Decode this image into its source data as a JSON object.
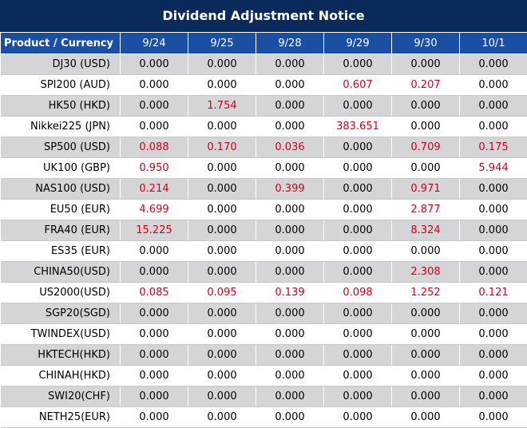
{
  "title": "Dividend Adjustment Notice",
  "header": {
    "product_label": "Product / Currency",
    "dates": [
      "9/24",
      "9/25",
      "9/28",
      "9/29",
      "9/30",
      "10/1"
    ]
  },
  "colors": {
    "title_bg": "#0b2a5c",
    "header_bg": "#1a4fa3",
    "highlight_text": "#d0021b",
    "shade_bg": "#d5d5d7"
  },
  "rows": [
    {
      "product": "DJ30 (USD)",
      "values": [
        "0.000",
        "0.000",
        "0.000",
        "0.000",
        "0.000",
        "0.000"
      ]
    },
    {
      "product": "SPI200 (AUD)",
      "values": [
        "0.000",
        "0.000",
        "0.000",
        "0.607",
        "0.207",
        "0.000"
      ]
    },
    {
      "product": "HK50 (HKD)",
      "values": [
        "0.000",
        "1.754",
        "0.000",
        "0.000",
        "0.000",
        "0.000"
      ]
    },
    {
      "product": "Nikkei225 (JPN)",
      "values": [
        "0.000",
        "0.000",
        "0.000",
        "383.651",
        "0.000",
        "0.000"
      ]
    },
    {
      "product": "SP500 (USD)",
      "values": [
        "0.088",
        "0.170",
        "0.036",
        "0.000",
        "0.709",
        "0.175"
      ]
    },
    {
      "product": "UK100 (GBP)",
      "values": [
        "0.950",
        "0.000",
        "0.000",
        "0.000",
        "0.000",
        "5.944"
      ]
    },
    {
      "product": "NAS100 (USD)",
      "values": [
        "0.214",
        "0.000",
        "0.399",
        "0.000",
        "0.971",
        "0.000"
      ]
    },
    {
      "product": "EU50 (EUR)",
      "values": [
        "4.699",
        "0.000",
        "0.000",
        "0.000",
        "2.877",
        "0.000"
      ]
    },
    {
      "product": "FRA40 (EUR)",
      "values": [
        "15.225",
        "0.000",
        "0.000",
        "0.000",
        "8.324",
        "0.000"
      ]
    },
    {
      "product": "ES35 (EUR)",
      "values": [
        "0.000",
        "0.000",
        "0.000",
        "0.000",
        "0.000",
        "0.000"
      ]
    },
    {
      "product": "CHINA50(USD)",
      "values": [
        "0.000",
        "0.000",
        "0.000",
        "0.000",
        "2.308",
        "0.000"
      ]
    },
    {
      "product": "US2000(USD)",
      "values": [
        "0.085",
        "0.095",
        "0.139",
        "0.098",
        "1.252",
        "0.121"
      ]
    },
    {
      "product": "SGP20(SGD)",
      "values": [
        "0.000",
        "0.000",
        "0.000",
        "0.000",
        "0.000",
        "0.000"
      ]
    },
    {
      "product": "TWINDEX(USD)",
      "values": [
        "0.000",
        "0.000",
        "0.000",
        "0.000",
        "0.000",
        "0.000"
      ]
    },
    {
      "product": "HKTECH(HKD)",
      "values": [
        "0.000",
        "0.000",
        "0.000",
        "0.000",
        "0.000",
        "0.000"
      ]
    },
    {
      "product": "CHINAH(HKD)",
      "values": [
        "0.000",
        "0.000",
        "0.000",
        "0.000",
        "0.000",
        "0.000"
      ]
    },
    {
      "product": "SWI20(CHF)",
      "values": [
        "0.000",
        "0.000",
        "0.000",
        "0.000",
        "0.000",
        "0.000"
      ]
    },
    {
      "product": "NETH25(EUR)",
      "values": [
        "0.000",
        "0.000",
        "0.000",
        "0.000",
        "0.000",
        "0.000"
      ]
    }
  ]
}
